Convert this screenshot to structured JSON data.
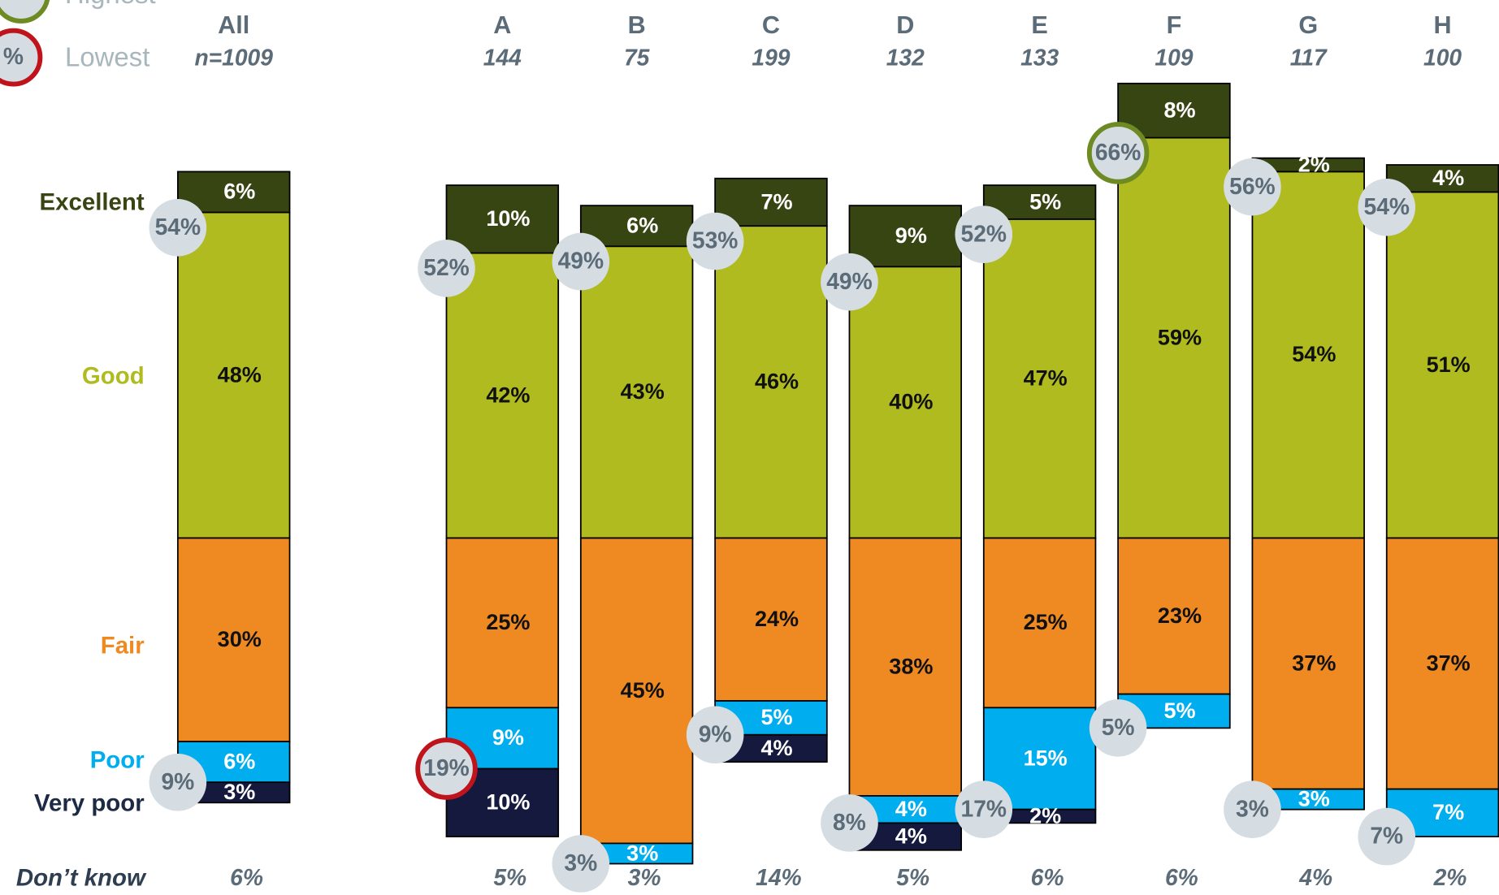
{
  "chart_data": {
    "type": "stacked_bar",
    "categories": [
      "All",
      "A",
      "B",
      "C",
      "D",
      "E",
      "F",
      "G",
      "H"
    ],
    "category_sublabels": [
      "n=1009",
      "144",
      "75",
      "199",
      "132",
      "133",
      "109",
      "117",
      "100"
    ],
    "series": [
      {
        "name": "Excellent",
        "color": "#374513",
        "values": [
          6,
          10,
          6,
          7,
          9,
          5,
          8,
          2,
          4
        ],
        "value_labels": [
          "6%",
          "10%",
          "6%",
          "7%",
          "9%",
          "5%",
          "8%",
          "2%",
          "4%"
        ]
      },
      {
        "name": "Good",
        "color": "#b0bb1f",
        "values": [
          48,
          42,
          43,
          46,
          40,
          47,
          59,
          54,
          51
        ],
        "value_labels": [
          "48%",
          "42%",
          "43%",
          "46%",
          "40%",
          "47%",
          "59%",
          "54%",
          "51%"
        ]
      },
      {
        "name": "Fair",
        "color": "#ef8a22",
        "values": [
          30,
          25,
          45,
          24,
          38,
          25,
          23,
          37,
          37
        ],
        "value_labels": [
          "30%",
          "25%",
          "45%",
          "24%",
          "38%",
          "25%",
          "23%",
          "37%",
          "37%"
        ]
      },
      {
        "name": "Poor",
        "color": "#00aeef",
        "values": [
          6,
          9,
          3,
          5,
          4,
          15,
          5,
          3,
          7
        ],
        "value_labels": [
          "6%",
          "9%",
          "3%",
          "5%",
          "4%",
          "15%",
          "5%",
          "3%",
          "7%"
        ]
      },
      {
        "name": "Very poor",
        "color": "#14193d",
        "values": [
          3,
          10,
          null,
          4,
          4,
          2,
          null,
          null,
          null
        ],
        "value_labels": [
          "3%",
          "10%",
          null,
          "4%",
          "4%",
          "2%",
          null,
          null,
          null
        ]
      }
    ],
    "dont_know": {
      "name": "Don’t know",
      "values": [
        6,
        5,
        3,
        14,
        5,
        6,
        6,
        4,
        2
      ],
      "value_labels": [
        "6%",
        "5%",
        "3%",
        "14%",
        "5%",
        "6%",
        "6%",
        "4%",
        "2%"
      ]
    },
    "net_positive": {
      "values": [
        54,
        52,
        49,
        53,
        49,
        52,
        66,
        56,
        54
      ],
      "value_labels": [
        "54%",
        "52%",
        "49%",
        "53%",
        "49%",
        "52%",
        "66%",
        "56%",
        "54%"
      ]
    },
    "net_negative": {
      "values": [
        9,
        19,
        3,
        9,
        8,
        17,
        5,
        3,
        7
      ],
      "value_labels": [
        "9%",
        "19%",
        "3%",
        "9%",
        "8%",
        "17%",
        "5%",
        "3%",
        "7%"
      ]
    },
    "highlights": [
      {
        "label": "Highest",
        "color": "#6e8a22",
        "side": "positive",
        "group": 6
      },
      {
        "label": "Lowest",
        "color": "#c0141c",
        "side": "negative",
        "group": 1,
        "symbol_text": "%"
      }
    ]
  }
}
